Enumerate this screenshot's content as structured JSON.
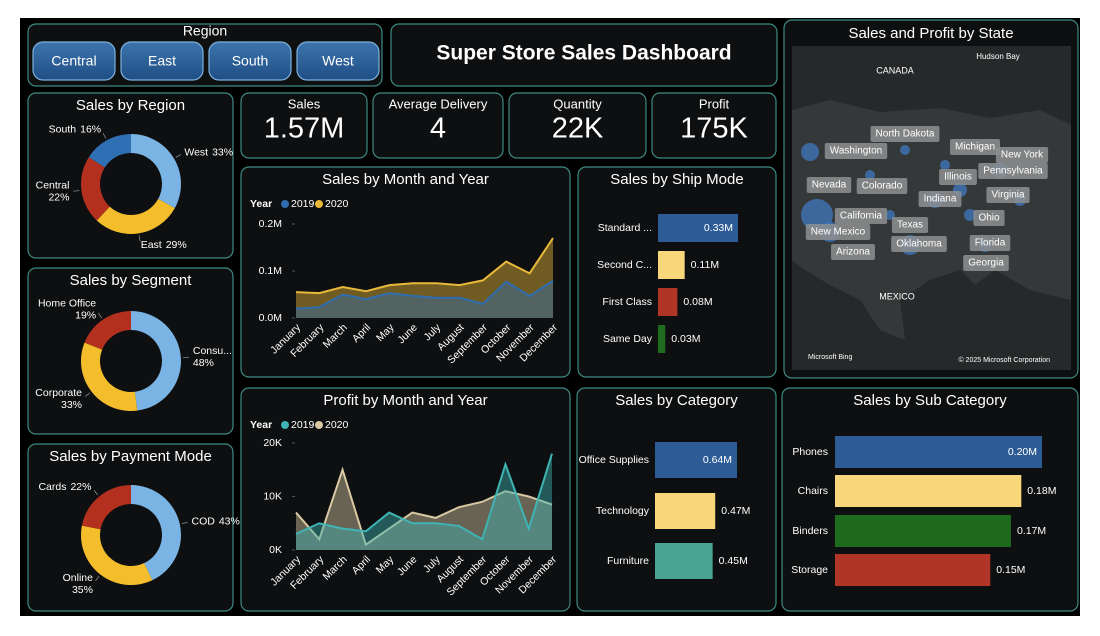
{
  "slicer": {
    "title": "Region",
    "options": [
      "Central",
      "East",
      "South",
      "West"
    ]
  },
  "header": {
    "title": "Super Store Sales Dashboard"
  },
  "kpis": [
    {
      "label": "Sales",
      "value": "1.57M"
    },
    {
      "label": "Average Delivery",
      "value": "4"
    },
    {
      "label": "Quantity",
      "value": "22K"
    },
    {
      "label": "Profit",
      "value": "175K"
    }
  ],
  "map": {
    "title": "Sales and Profit by State",
    "regions": [
      "CANADA",
      "MEXICO"
    ],
    "water": [
      "Hudson Bay"
    ],
    "states": [
      "North Dakota",
      "Washington",
      "Michigan",
      "New York",
      "Pennsylvania",
      "Illinois",
      "Nevada",
      "Colorado",
      "Virginia",
      "Indiana",
      "California",
      "Ohio",
      "Texas",
      "New Mexico",
      "Oklahoma",
      "Florida",
      "Arizona",
      "Georgia"
    ],
    "credits": [
      "Microsoft Bing",
      "© 2025 Microsoft Corporation"
    ]
  },
  "chart_data": [
    {
      "type": "donut",
      "title": "Sales by Region",
      "categories": [
        "West",
        "East",
        "Central",
        "South"
      ],
      "values": [
        33,
        29,
        22,
        16
      ],
      "value_labels": [
        "33%",
        "29%",
        "22%",
        "16%"
      ],
      "colors": [
        "#7ab4e4",
        "#f3bd2c",
        "#b3301f",
        "#2f6fb3"
      ]
    },
    {
      "type": "donut",
      "title": "Sales by Segment",
      "categories": [
        "Consu...",
        "Corporate",
        "Home Office"
      ],
      "values": [
        48,
        33,
        19
      ],
      "value_labels": [
        "48%",
        "33%",
        "19%"
      ],
      "colors": [
        "#7ab4e4",
        "#f3bd2c",
        "#b3301f"
      ]
    },
    {
      "type": "donut",
      "title": "Sales by Payment Mode",
      "categories": [
        "COD",
        "Online",
        "Cards"
      ],
      "values": [
        43,
        35,
        22
      ],
      "value_labels": [
        "43%",
        "35%",
        "22%"
      ],
      "colors": [
        "#7ab4e4",
        "#f3bd2c",
        "#b3301f"
      ]
    },
    {
      "type": "area",
      "title": "Sales by Month and Year",
      "legend_title": "Year",
      "categories": [
        "January",
        "February",
        "March",
        "April",
        "May",
        "June",
        "July",
        "August",
        "September",
        "October",
        "November",
        "December"
      ],
      "series": [
        {
          "name": "2019",
          "color": "#2f6db0",
          "values": [
            0.02,
            0.023,
            0.05,
            0.04,
            0.053,
            0.047,
            0.043,
            0.043,
            0.03,
            0.077,
            0.047,
            0.079
          ]
        },
        {
          "name": "2020",
          "color": "#e8b93a",
          "values": [
            0.055,
            0.053,
            0.066,
            0.057,
            0.07,
            0.074,
            0.074,
            0.07,
            0.08,
            0.12,
            0.095,
            0.17
          ]
        }
      ],
      "ylim": [
        0,
        0.2
      ],
      "yticks": [
        {
          "value": 0,
          "label": "0.0M"
        },
        {
          "value": 0.1,
          "label": "0.1M"
        },
        {
          "value": 0.2,
          "label": "0.2M"
        }
      ]
    },
    {
      "type": "area",
      "title": "Profit by Month and Year",
      "legend_title": "Year",
      "categories": [
        "January",
        "February",
        "March",
        "April",
        "May",
        "June",
        "July",
        "August",
        "September",
        "October",
        "November",
        "December"
      ],
      "series": [
        {
          "name": "2019",
          "color": "#3fb4b4",
          "values": [
            3,
            5,
            4,
            3.5,
            7,
            5,
            5,
            4.5,
            2,
            16,
            4,
            18
          ]
        },
        {
          "name": "2020",
          "color": "#d8c9a3",
          "values": [
            7,
            2,
            15,
            1,
            4,
            7,
            6,
            8,
            9,
            11,
            10,
            8.5
          ]
        }
      ],
      "ylim": [
        0,
        20
      ],
      "yticks": [
        {
          "value": 0,
          "label": "0K"
        },
        {
          "value": 10,
          "label": "10K"
        },
        {
          "value": 20,
          "label": "20K"
        }
      ]
    },
    {
      "type": "hbar",
      "title": "Sales by Ship Mode",
      "categories": [
        "Standard ...",
        "Second C...",
        "First Class",
        "Same Day"
      ],
      "values": [
        0.33,
        0.11,
        0.08,
        0.03
      ],
      "value_labels": [
        "0.33M",
        "0.11M",
        "0.08M",
        "0.03M"
      ],
      "colors": [
        "#2d5b96",
        "#f7d77a",
        "#b03526",
        "#1f6b1f"
      ]
    },
    {
      "type": "hbar",
      "title": "Sales by Category",
      "categories": [
        "Office Supplies",
        "Technology",
        "Furniture"
      ],
      "values": [
        0.64,
        0.47,
        0.45
      ],
      "value_labels": [
        "0.64M",
        "0.47M",
        "0.45M"
      ],
      "colors": [
        "#2d5b96",
        "#f7d77a",
        "#4aa393"
      ]
    },
    {
      "type": "hbar",
      "title": "Sales by Sub Category",
      "categories": [
        "Phones",
        "Chairs",
        "Binders",
        "Storage"
      ],
      "values": [
        0.2,
        0.18,
        0.17,
        0.15
      ],
      "value_labels": [
        "0.20M",
        "0.18M",
        "0.17M",
        "0.15M"
      ],
      "colors": [
        "#2d5b96",
        "#f7d77a",
        "#1e6b1e",
        "#b03526"
      ]
    }
  ]
}
